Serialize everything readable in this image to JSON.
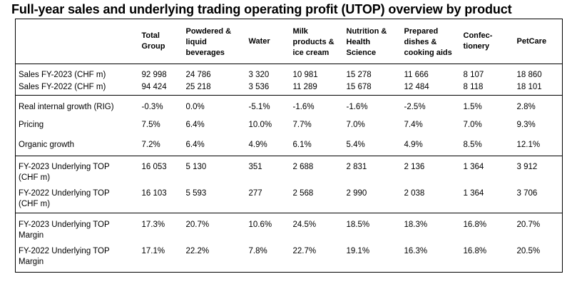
{
  "title": "Full-year sales and underlying trading operating profit (UTOP) overview by product",
  "columns": [
    {
      "lines": [
        "Total",
        "Group"
      ]
    },
    {
      "lines": [
        "Powdered &",
        "liquid",
        "beverages"
      ]
    },
    {
      "lines": [
        "Water"
      ]
    },
    {
      "lines": [
        "Milk",
        "products &",
        "ice cream"
      ]
    },
    {
      "lines": [
        "Nutrition &",
        "Health",
        "Science"
      ]
    },
    {
      "lines": [
        "Prepared",
        "dishes &",
        "cooking aids"
      ]
    },
    {
      "lines": [
        "Confec-",
        "tionery"
      ]
    },
    {
      "lines": [
        "PetCare"
      ]
    }
  ],
  "rows": [
    {
      "label": [
        "Sales FY-2023 (CHF m)"
      ],
      "values": [
        "92 998",
        "24 786",
        "3 320",
        "10 981",
        "15 278",
        "11 666",
        "8 107",
        "18 860"
      ]
    },
    {
      "label": [
        "Sales FY-2022 (CHF m)"
      ],
      "values": [
        "94 424",
        "25 218",
        "3 536",
        "11 289",
        "15 678",
        "12 484",
        "8 118",
        "18 101"
      ]
    },
    {
      "label": [
        "Real internal growth (RIG)"
      ],
      "values": [
        "-0.3%",
        "0.0%",
        "-5.1%",
        "-1.6%",
        "-1.6%",
        "-2.5%",
        "1.5%",
        "2.8%"
      ]
    },
    {
      "label": [
        "Pricing"
      ],
      "values": [
        "7.5%",
        "6.4%",
        "10.0%",
        "7.7%",
        "7.0%",
        "7.4%",
        "7.0%",
        "9.3%"
      ]
    },
    {
      "label": [
        "Organic growth"
      ],
      "values": [
        "7.2%",
        "6.4%",
        "4.9%",
        "6.1%",
        "5.4%",
        "4.9%",
        "8.5%",
        "12.1%"
      ]
    },
    {
      "label": [
        "FY-2023 Underlying TOP",
        "(CHF m)"
      ],
      "values": [
        "16 053",
        "5 130",
        "351",
        "2 688",
        "2 831",
        "2 136",
        "1 364",
        "3 912"
      ]
    },
    {
      "label": [
        "FY-2022 Underlying TOP",
        "(CHF m)"
      ],
      "values": [
        "16 103",
        "5 593",
        "277",
        "2 568",
        "2 990",
        "2 038",
        "1 364",
        "3 706"
      ]
    },
    {
      "label": [
        "FY-2023 Underlying TOP",
        "Margin"
      ],
      "values": [
        "17.3%",
        "20.7%",
        "10.6%",
        "24.5%",
        "18.5%",
        "18.3%",
        "16.8%",
        "20.7%"
      ]
    },
    {
      "label": [
        "FY-2022 Underlying TOP",
        "Margin"
      ],
      "values": [
        "17.1%",
        "22.2%",
        "7.8%",
        "22.7%",
        "19.1%",
        "16.3%",
        "16.8%",
        "20.5%"
      ]
    }
  ]
}
